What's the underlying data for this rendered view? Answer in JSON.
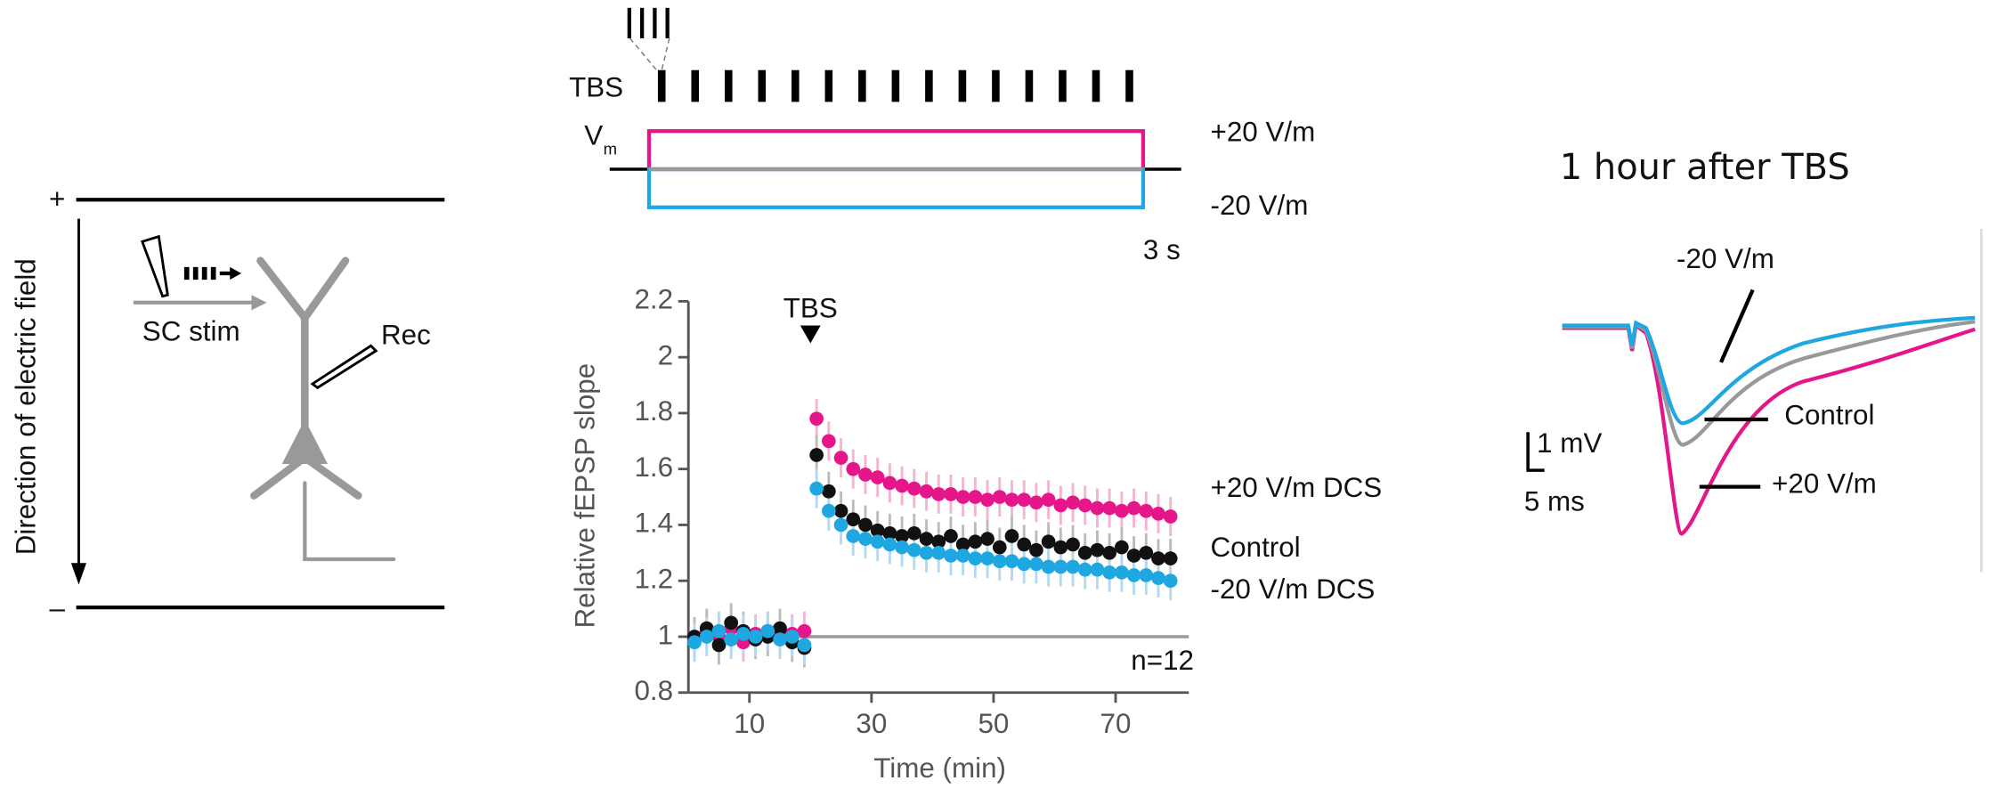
{
  "diagram": {
    "field_label": "Direction of electric field",
    "plus": "+",
    "minus": "–",
    "stim_label": "SC stim",
    "rec_label": "Rec"
  },
  "protocol": {
    "tbs_label": "TBS",
    "vm_label": "V",
    "vm_sub": "m",
    "pos_label": "+20 V/m",
    "neg_label": "-20 V/m",
    "duration_label": "3 s"
  },
  "traces": {
    "title": "1 hour after TBS",
    "neg_label": "-20 V/m",
    "control_label": "Control",
    "pos_label": "+20 V/m",
    "v_scale": "1 mV",
    "t_scale": "5 ms"
  },
  "chart_data": {
    "type": "scatter",
    "x_label": "Time (min)",
    "y_label": "Relative fEPSP slope",
    "xlim": [
      0,
      82
    ],
    "ylim": [
      0.8,
      2.2
    ],
    "xticks": [
      10,
      30,
      50,
      70
    ],
    "yticks": [
      0.8,
      1,
      1.2,
      1.4,
      1.6,
      1.8,
      2,
      2.2
    ],
    "reference_line": 1,
    "annotation": {
      "text": "TBS",
      "x": 20
    },
    "note": "n=12",
    "x": [
      1,
      3,
      5,
      7,
      9,
      11,
      13,
      15,
      17,
      19,
      21,
      23,
      25,
      27,
      29,
      31,
      33,
      35,
      37,
      39,
      41,
      43,
      45,
      47,
      49,
      51,
      53,
      55,
      57,
      59,
      61,
      63,
      65,
      67,
      69,
      71,
      73,
      75,
      77,
      79
    ],
    "series": [
      {
        "name": "+20 V/m DCS",
        "color": "#e5158a",
        "error_color": "#f5b3cf",
        "error": 0.07,
        "values": [
          0.99,
          1.02,
          1.0,
          1.03,
          0.98,
          1.01,
          1.02,
          1.0,
          1.01,
          1.02,
          1.78,
          1.7,
          1.64,
          1.6,
          1.58,
          1.57,
          1.55,
          1.54,
          1.53,
          1.52,
          1.51,
          1.51,
          1.5,
          1.5,
          1.49,
          1.5,
          1.49,
          1.49,
          1.48,
          1.49,
          1.47,
          1.48,
          1.47,
          1.46,
          1.46,
          1.45,
          1.46,
          1.45,
          1.44,
          1.43
        ]
      },
      {
        "name": "Control",
        "color": "#111111",
        "error_color": "#bbbbbb",
        "error": 0.07,
        "values": [
          1.0,
          1.03,
          0.97,
          1.05,
          1.02,
          0.99,
          1.0,
          1.03,
          0.98,
          0.96,
          1.65,
          1.52,
          1.45,
          1.42,
          1.4,
          1.38,
          1.37,
          1.36,
          1.37,
          1.35,
          1.34,
          1.36,
          1.33,
          1.34,
          1.35,
          1.32,
          1.36,
          1.33,
          1.31,
          1.34,
          1.32,
          1.33,
          1.3,
          1.31,
          1.3,
          1.32,
          1.29,
          1.3,
          1.28,
          1.28
        ]
      },
      {
        "name": "-20 V/m DCS",
        "color": "#1ea7e1",
        "error_color": "#b3d9f2",
        "error": 0.07,
        "values": [
          0.98,
          1.0,
          1.02,
          0.99,
          1.01,
          1.0,
          1.02,
          0.99,
          1.0,
          0.97,
          1.53,
          1.45,
          1.4,
          1.36,
          1.35,
          1.34,
          1.33,
          1.32,
          1.31,
          1.3,
          1.3,
          1.29,
          1.29,
          1.28,
          1.28,
          1.27,
          1.27,
          1.26,
          1.26,
          1.25,
          1.25,
          1.25,
          1.24,
          1.24,
          1.23,
          1.23,
          1.22,
          1.22,
          1.21,
          1.2
        ]
      }
    ]
  }
}
